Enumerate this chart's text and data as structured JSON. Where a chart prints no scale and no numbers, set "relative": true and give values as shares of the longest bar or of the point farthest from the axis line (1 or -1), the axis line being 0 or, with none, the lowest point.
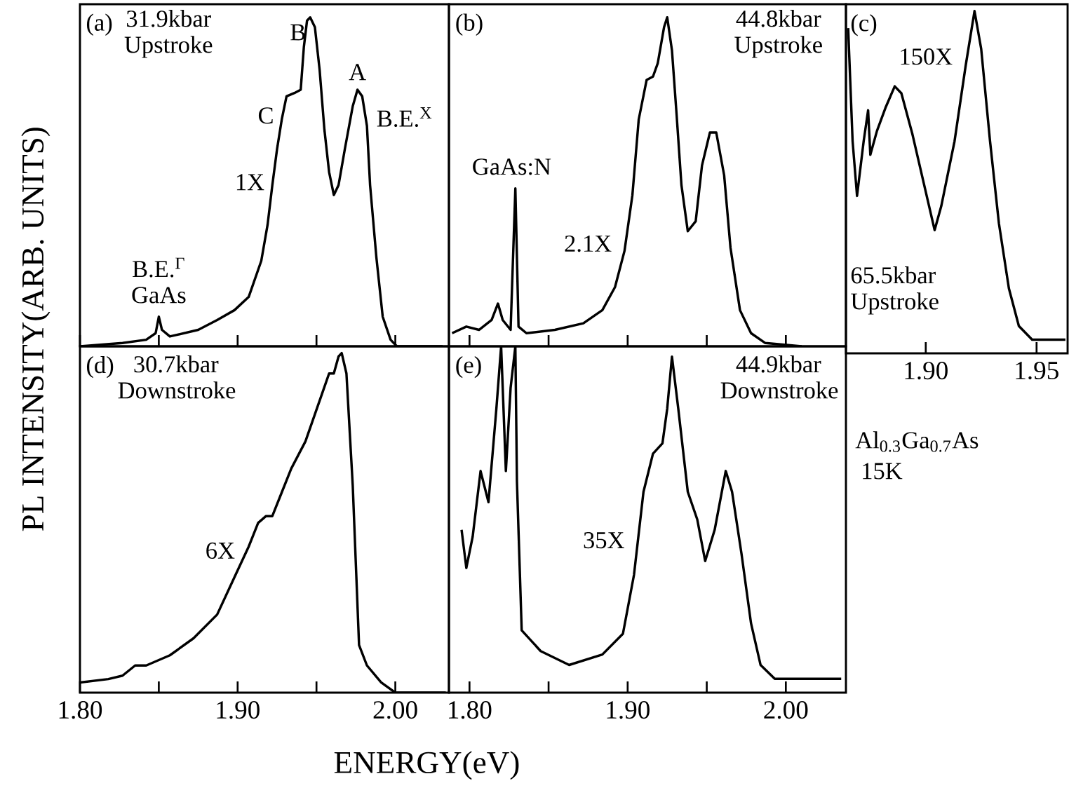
{
  "chart_data": [
    {
      "type": "line",
      "title": "(a)",
      "subtitle": "31.9kbar Upstroke",
      "relative": true,
      "color": "#000000",
      "xlim": [
        1.8,
        2.034
      ],
      "xticks": [
        1.8,
        1.85,
        1.9,
        1.95,
        2.0
      ],
      "tick_labels": false,
      "x": [
        1.8,
        1.827,
        1.842,
        1.848,
        1.85,
        1.852,
        1.857,
        1.875,
        1.887,
        1.898,
        1.907,
        1.915,
        1.919,
        1.922,
        1.925,
        1.928,
        1.931,
        1.936,
        1.94,
        1.942,
        1.944,
        1.946,
        1.949,
        1.952,
        1.955,
        1.958,
        1.961,
        1.964,
        1.968,
        1.973,
        1.976,
        1.979,
        1.982,
        1.984,
        1.988,
        1.992,
        1.997,
        2.001,
        2.03
      ],
      "values": [
        0.0,
        0.01,
        0.02,
        0.04,
        0.09,
        0.05,
        0.03,
        0.05,
        0.08,
        0.11,
        0.15,
        0.26,
        0.37,
        0.49,
        0.6,
        0.69,
        0.76,
        0.77,
        0.78,
        0.91,
        0.99,
        1,
        0.97,
        0.84,
        0.66,
        0.53,
        0.46,
        0.49,
        0.6,
        0.73,
        0.78,
        0.76,
        0.67,
        0.49,
        0.27,
        0.09,
        0.02,
        0,
        0
      ],
      "annotations": [
        "1X",
        {
          "text": "B",
          "x": 1.946,
          "y": 1
        },
        {
          "text": "A",
          "x": 1.976,
          "y": 0.78
        },
        {
          "text": "C",
          "x": 1.928,
          "y": 0.69
        },
        "B.E.$^{X}$",
        {
          "text": "B.E.$^{Γ}$ GaAs",
          "x": 1.85,
          "y": 0.09
        }
      ]
    },
    {
      "type": "line",
      "title": "(b)",
      "subtitle": "44.8kbar Upstroke",
      "relative": true,
      "color": "#000000",
      "xlim": [
        1.787,
        2.038
      ],
      "xticks": [
        1.8,
        1.85,
        1.9,
        1.95,
        2.0
      ],
      "tick_labels": false,
      "x": [
        1.789,
        1.798,
        1.806,
        1.814,
        1.818,
        1.821,
        1.826,
        1.829,
        1.831,
        1.836,
        1.854,
        1.872,
        1.884,
        1.892,
        1.898,
        1.903,
        1.907,
        1.912,
        1.916,
        1.919,
        1.923,
        1.925,
        1.928,
        1.931,
        1.934,
        1.938,
        1.943,
        1.947,
        1.952,
        1.956,
        1.961,
        1.965,
        1.971,
        1.978,
        1.987,
        2.01
      ],
      "values": [
        0.04,
        0.06,
        0.05,
        0.08,
        0.13,
        0.08,
        0.05,
        0.48,
        0.06,
        0.04,
        0.05,
        0.07,
        0.11,
        0.18,
        0.29,
        0.46,
        0.69,
        0.81,
        0.82,
        0.86,
        0.97,
        1,
        0.9,
        0.7,
        0.49,
        0.35,
        0.38,
        0.55,
        0.65,
        0.65,
        0.52,
        0.3,
        0.11,
        0.04,
        0.01,
        0
      ],
      "annotations": [
        "2.1X",
        {
          "text": "GaAs:N",
          "x": 1.829,
          "y": 0.48
        }
      ]
    },
    {
      "type": "line",
      "title": "(c)",
      "subtitle": "65.5kbar Upstroke",
      "relative": true,
      "color": "#000000",
      "xlim": [
        1.864,
        1.964
      ],
      "xticks": [
        {
          "value": 1.9,
          "label": "1.90"
        },
        {
          "value": 1.95,
          "label": "1.95"
        }
      ],
      "x": [
        1.865,
        1.867,
        1.869,
        1.872,
        1.874,
        1.875,
        1.878,
        1.882,
        1.886,
        1.889,
        1.894,
        1.899,
        1.904,
        1.907,
        1.913,
        1.918,
        1.922,
        1.925,
        1.929,
        1.933,
        1.9375,
        1.942,
        1.948,
        1.963
      ],
      "values": [
        0.95,
        0.62,
        0.46,
        0.62,
        0.71,
        0.58,
        0.65,
        0.72,
        0.78,
        0.76,
        0.64,
        0.5,
        0.36,
        0.43,
        0.62,
        0.84,
        1,
        0.89,
        0.62,
        0.38,
        0.19,
        0.08,
        0.04,
        0.04
      ],
      "annotations": [
        "150X"
      ]
    },
    {
      "type": "line",
      "title": "(d)",
      "subtitle": "30.7kbar Downstroke",
      "relative": true,
      "color": "#000000",
      "xlim": [
        1.8,
        2.034
      ],
      "xlabel": "ENERGY(eV)",
      "ylabel": "PL INTENSITY(ARB. UNITS)",
      "xticks": [
        {
          "value": 1.8,
          "label": "1.80"
        },
        {
          "value": 1.85,
          "label": null
        },
        {
          "value": 1.9,
          "label": "1.90"
        },
        {
          "value": 1.95,
          "label": null
        },
        {
          "value": 2.0,
          "label": "2.00"
        }
      ],
      "x": [
        1.8,
        1.818,
        1.827,
        1.835,
        1.842,
        1.857,
        1.872,
        1.887,
        1.898,
        1.907,
        1.913,
        1.918,
        1.922,
        1.928,
        1.934,
        1.943,
        1.949,
        1.955,
        1.958,
        1.961,
        1.964,
        1.966,
        1.969,
        1.973,
        1.977,
        1.982,
        1.991,
        2.0,
        2.032
      ],
      "values": [
        0.03,
        0.04,
        0.05,
        0.08,
        0.08,
        0.11,
        0.16,
        0.23,
        0.34,
        0.43,
        0.5,
        0.52,
        0.52,
        0.59,
        0.66,
        0.74,
        0.82,
        0.9,
        0.94,
        0.94,
        0.99,
        1,
        0.94,
        0.61,
        0.14,
        0.08,
        0.03,
        0,
        0
      ],
      "annotations": [
        "6X"
      ]
    },
    {
      "type": "line",
      "title": "(e)",
      "subtitle": "44.9kbar Downstroke",
      "relative": true,
      "color": "#000000",
      "xlim": [
        1.787,
        2.038
      ],
      "xticks": [
        {
          "value": 1.8,
          "label": "1.80"
        },
        {
          "value": 1.85,
          "label": null
        },
        {
          "value": 1.9,
          "label": "1.90"
        },
        {
          "value": 1.95,
          "label": null
        },
        {
          "value": 2.0,
          "label": "2.00"
        }
      ],
      "x": [
        1.795,
        1.798,
        1.802,
        1.807,
        1.812,
        1.817,
        1.82,
        1.823,
        1.826,
        1.829,
        1.83,
        1.833,
        1.845,
        1.863,
        1.884,
        1.897,
        1.904,
        1.91,
        1.916,
        1.922,
        1.925,
        1.928,
        1.932,
        1.938,
        1.944,
        1.949,
        1.955,
        1.962,
        1.966,
        1.972,
        1.978,
        1.984,
        1.993,
        2.013,
        2.035
      ],
      "values": [
        0.47,
        0.36,
        0.45,
        0.64,
        0.55,
        0.82,
        1,
        0.64,
        0.88,
        1,
        0.61,
        0.18,
        0.12,
        0.08,
        0.11,
        0.17,
        0.34,
        0.58,
        0.69,
        0.72,
        0.82,
        0.97,
        0.82,
        0.58,
        0.5,
        0.38,
        0.47,
        0.64,
        0.58,
        0.4,
        0.2,
        0.08,
        0.04,
        0.04,
        0.04
      ],
      "annotations": [
        "35X"
      ]
    },
    {
      "type": "other",
      "annotations": [
        "Al$_{0.3}$Ga$_{0.7}$As",
        "15K"
      ]
    }
  ]
}
